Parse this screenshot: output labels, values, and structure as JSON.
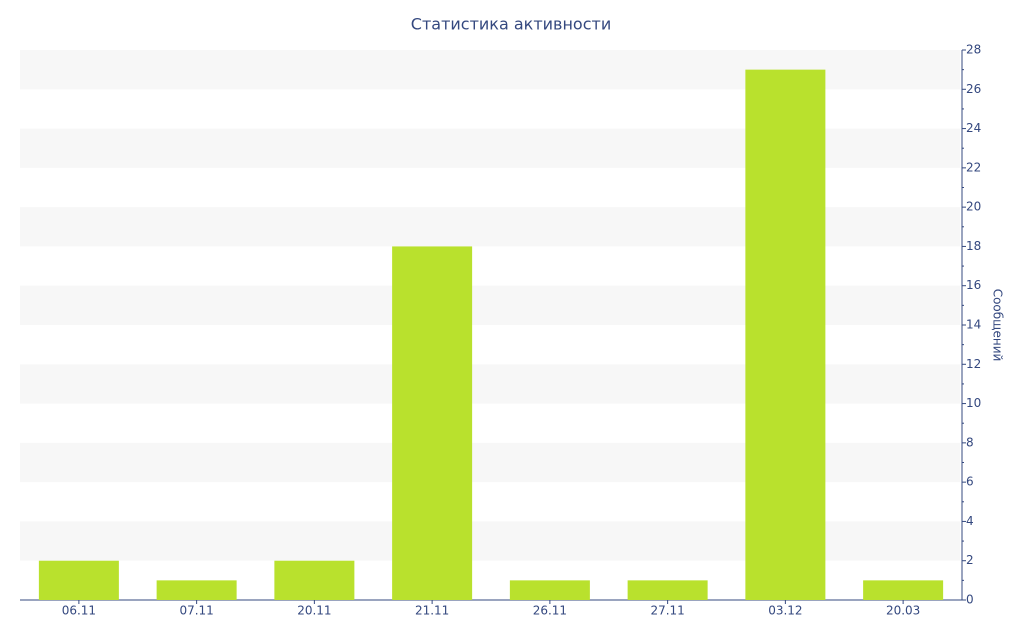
{
  "chart_data": {
    "type": "bar",
    "title": "Статистика активности",
    "y_label": "Сообщений",
    "categories": [
      "06.11",
      "07.11",
      "20.11",
      "21.11",
      "26.11",
      "27.11",
      "03.12",
      "20.03"
    ],
    "values": [
      2,
      1,
      2,
      18,
      1,
      1,
      27,
      1
    ],
    "color": "#b9e12d",
    "ylim": [
      0,
      28
    ],
    "yticks": [
      0,
      2,
      4,
      6,
      8,
      10,
      12,
      14,
      16,
      18,
      20,
      22,
      24,
      26,
      28
    ],
    "grid": true
  }
}
